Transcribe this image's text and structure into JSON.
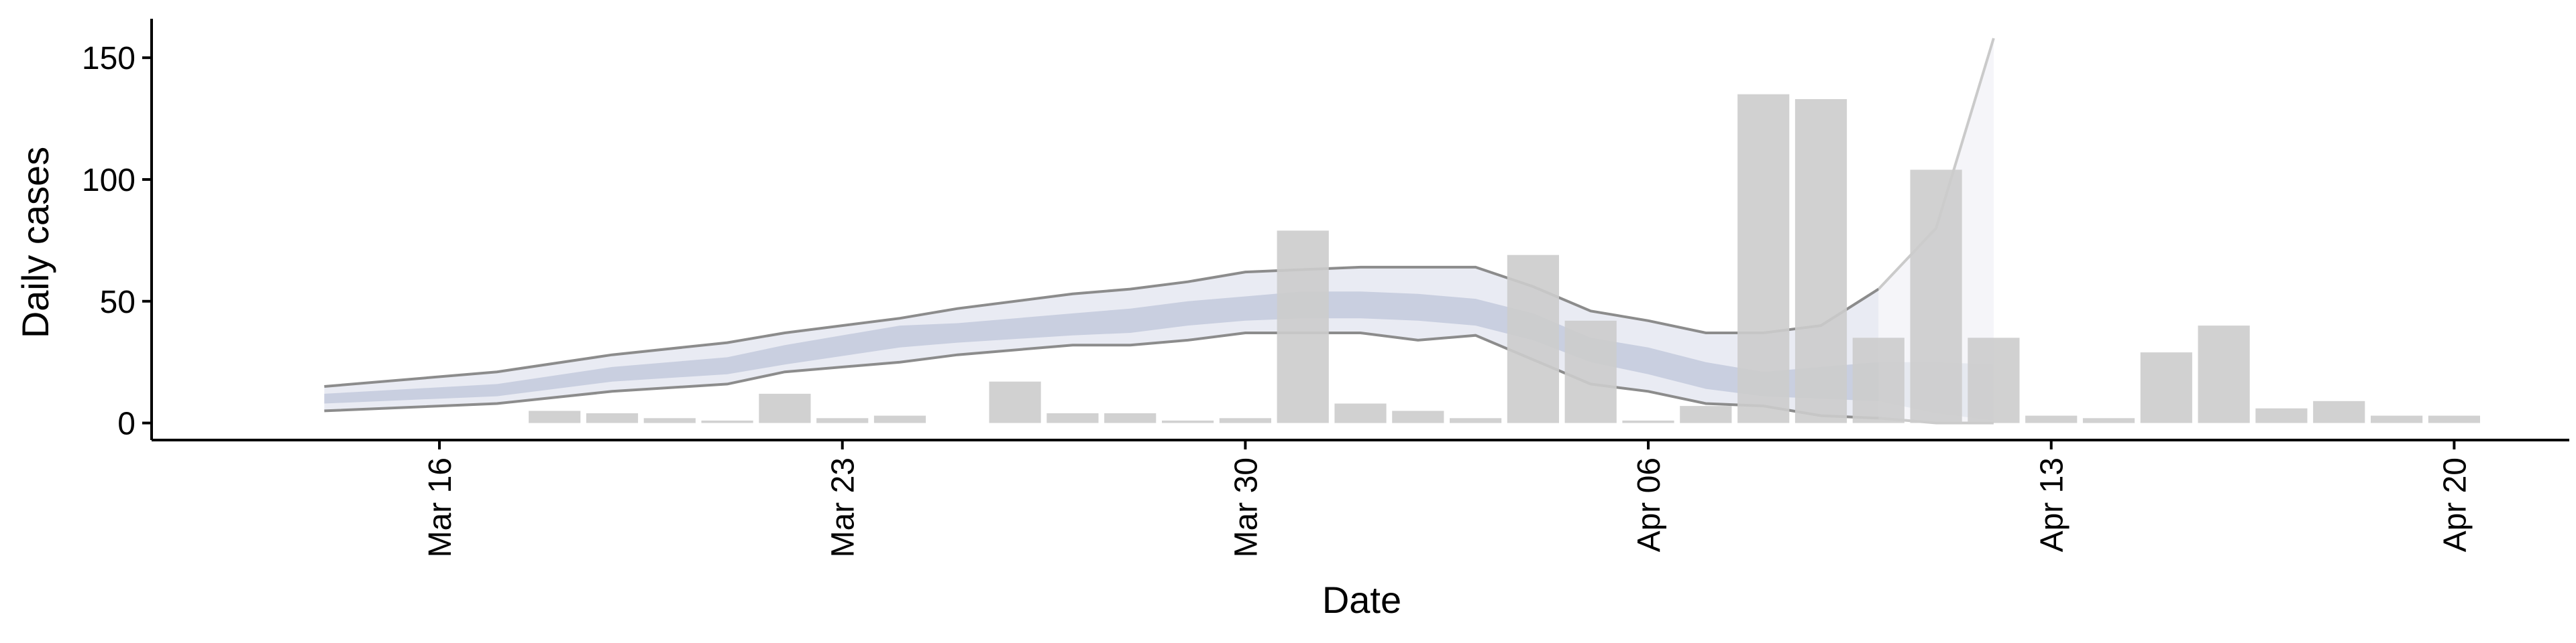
{
  "chart_data": {
    "type": "bar",
    "xlabel": "Date",
    "ylabel": "Daily cases",
    "x_ticks": [
      {
        "date": "2020-03-16",
        "label": "Mar 16"
      },
      {
        "date": "2020-03-23",
        "label": "Mar 23"
      },
      {
        "date": "2020-03-30",
        "label": "Mar 30"
      },
      {
        "date": "2020-04-06",
        "label": "Apr 06"
      },
      {
        "date": "2020-04-13",
        "label": "Apr 13"
      },
      {
        "date": "2020-04-20",
        "label": "Apr 20"
      }
    ],
    "y_ticks": [
      0,
      50,
      100,
      150
    ],
    "xlim": [
      "2020-03-11",
      "2020-04-22"
    ],
    "ylim": [
      -7,
      166
    ],
    "grid": false,
    "colors": {
      "bars": "#cccccc",
      "band_inner": "#c9cfe0",
      "band_outer": "#e9ebf3",
      "band_lines": "#8c8c8c",
      "axes": "#000000"
    },
    "bars": [
      {
        "date": "2020-03-18",
        "value": 5
      },
      {
        "date": "2020-03-19",
        "value": 4
      },
      {
        "date": "2020-03-20",
        "value": 2
      },
      {
        "date": "2020-03-21",
        "value": 1
      },
      {
        "date": "2020-03-22",
        "value": 12
      },
      {
        "date": "2020-03-23",
        "value": 2
      },
      {
        "date": "2020-03-24",
        "value": 3
      },
      {
        "date": "2020-03-26",
        "value": 17
      },
      {
        "date": "2020-03-27",
        "value": 4
      },
      {
        "date": "2020-03-28",
        "value": 4
      },
      {
        "date": "2020-03-29",
        "value": 1
      },
      {
        "date": "2020-03-30",
        "value": 2
      },
      {
        "date": "2020-03-31",
        "value": 79
      },
      {
        "date": "2020-04-01",
        "value": 8
      },
      {
        "date": "2020-04-02",
        "value": 5
      },
      {
        "date": "2020-04-03",
        "value": 2
      },
      {
        "date": "2020-04-04",
        "value": 69
      },
      {
        "date": "2020-04-05",
        "value": 42
      },
      {
        "date": "2020-04-06",
        "value": 1
      },
      {
        "date": "2020-04-07",
        "value": 7
      },
      {
        "date": "2020-04-08",
        "value": 135
      },
      {
        "date": "2020-04-09",
        "value": 133
      },
      {
        "date": "2020-04-10",
        "value": 35
      },
      {
        "date": "2020-04-11",
        "value": 104
      },
      {
        "date": "2020-04-12",
        "value": 35
      },
      {
        "date": "2020-04-13",
        "value": 3
      },
      {
        "date": "2020-04-14",
        "value": 2
      },
      {
        "date": "2020-04-15",
        "value": 29
      },
      {
        "date": "2020-04-16",
        "value": 40
      },
      {
        "date": "2020-04-17",
        "value": 6
      },
      {
        "date": "2020-04-18",
        "value": 9
      },
      {
        "date": "2020-04-19",
        "value": 3
      },
      {
        "date": "2020-04-20",
        "value": 3
      }
    ],
    "band": [
      {
        "date": "2020-03-14",
        "lower": 5,
        "inner_lower": 8,
        "inner_upper": 12,
        "upper": 15
      },
      {
        "date": "2020-03-17",
        "lower": 8,
        "inner_lower": 11,
        "inner_upper": 16,
        "upper": 21
      },
      {
        "date": "2020-03-19",
        "lower": 13,
        "inner_lower": 17,
        "inner_upper": 23,
        "upper": 28
      },
      {
        "date": "2020-03-21",
        "lower": 16,
        "inner_lower": 20,
        "inner_upper": 27,
        "upper": 33
      },
      {
        "date": "2020-03-22",
        "lower": 21,
        "inner_lower": 24,
        "inner_upper": 32,
        "upper": 37
      },
      {
        "date": "2020-03-24",
        "lower": 25,
        "inner_lower": 31,
        "inner_upper": 40,
        "upper": 43
      },
      {
        "date": "2020-03-25",
        "lower": 28,
        "inner_lower": 33,
        "inner_upper": 41,
        "upper": 47
      },
      {
        "date": "2020-03-27",
        "lower": 32,
        "inner_lower": 36,
        "inner_upper": 45,
        "upper": 53
      },
      {
        "date": "2020-03-28",
        "lower": 32,
        "inner_lower": 37,
        "inner_upper": 47,
        "upper": 55
      },
      {
        "date": "2020-03-29",
        "lower": 34,
        "inner_lower": 40,
        "inner_upper": 50,
        "upper": 58
      },
      {
        "date": "2020-03-30",
        "lower": 37,
        "inner_lower": 42,
        "inner_upper": 52,
        "upper": 62
      },
      {
        "date": "2020-03-31",
        "lower": 37,
        "inner_lower": 43,
        "inner_upper": 54,
        "upper": 63
      },
      {
        "date": "2020-04-01",
        "lower": 37,
        "inner_lower": 43,
        "inner_upper": 54,
        "upper": 64
      },
      {
        "date": "2020-04-02",
        "lower": 34,
        "inner_lower": 42,
        "inner_upper": 53,
        "upper": 64
      },
      {
        "date": "2020-04-03",
        "lower": 36,
        "inner_lower": 40,
        "inner_upper": 51,
        "upper": 64
      },
      {
        "date": "2020-04-04",
        "lower": 26,
        "inner_lower": 34,
        "inner_upper": 45,
        "upper": 56
      },
      {
        "date": "2020-04-05",
        "lower": 16,
        "inner_lower": 25,
        "inner_upper": 35,
        "upper": 46
      },
      {
        "date": "2020-04-06",
        "lower": 13,
        "inner_lower": 20,
        "inner_upper": 31,
        "upper": 42
      },
      {
        "date": "2020-04-07",
        "lower": 8,
        "inner_lower": 14,
        "inner_upper": 25,
        "upper": 37
      },
      {
        "date": "2020-04-08",
        "lower": 7,
        "inner_lower": 11,
        "inner_upper": 21,
        "upper": 37
      },
      {
        "date": "2020-04-09",
        "lower": 3,
        "inner_lower": 10,
        "inner_upper": 23,
        "upper": 40
      },
      {
        "date": "2020-04-10",
        "lower": 2,
        "inner_lower": 9,
        "inner_upper": 25,
        "upper": 55
      }
    ],
    "band_tail": [
      {
        "date": "2020-04-10",
        "lower": 2,
        "inner_lower": 9,
        "inner_upper": 25,
        "upper": 55
      },
      {
        "date": "2020-04-11",
        "lower": 0,
        "inner_lower": 4,
        "inner_upper": 25,
        "upper": 80
      },
      {
        "date": "2020-04-12",
        "lower": 0,
        "inner_lower": 1,
        "inner_upper": 24,
        "upper": 158
      }
    ]
  }
}
